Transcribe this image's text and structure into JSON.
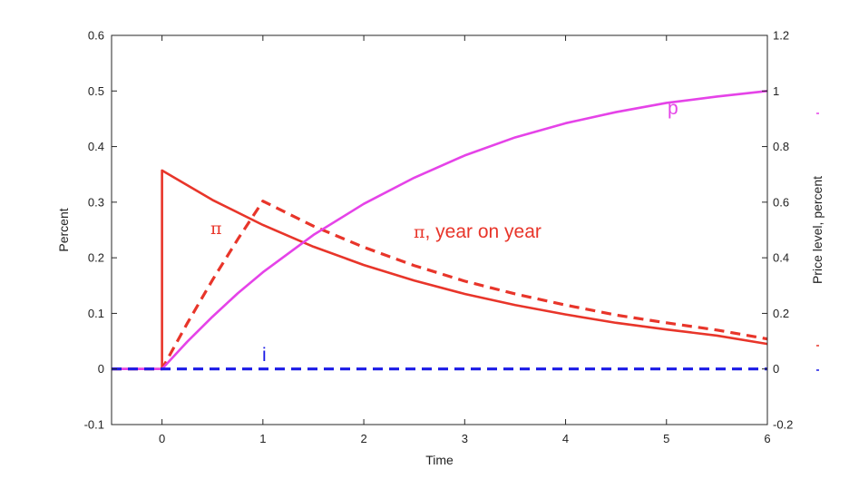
{
  "chart_data": {
    "type": "line",
    "xlabel": "Time",
    "ylabel_left": "Percent",
    "ylabel_right": "Price level, percent",
    "xlim": [
      -0.5,
      6
    ],
    "ylim_left": [
      -0.1,
      0.6
    ],
    "ylim_right": [
      -0.2,
      1.2
    ],
    "grid": false,
    "x_ticks": [
      0,
      1,
      2,
      3,
      4,
      5,
      6
    ],
    "x_tick_labels": [
      "0",
      "1",
      "2",
      "3",
      "4",
      "5",
      "6"
    ],
    "y_left_ticks": [
      -0.1,
      0,
      0.1,
      0.2,
      0.3,
      0.4,
      0.5,
      0.6
    ],
    "y_left_tick_labels": [
      "-0.1",
      "0",
      "0.1",
      "0.2",
      "0.3",
      "0.4",
      "0.5",
      "0.6"
    ],
    "y_right_ticks": [
      -0.2,
      0,
      0.2,
      0.4,
      0.6,
      0.8,
      1,
      1.2
    ],
    "y_right_tick_labels": [
      "-0.2",
      "0",
      "0.2",
      "0.4",
      "0.6",
      "0.8",
      "1",
      "1.2"
    ],
    "annotations": {
      "p": "p",
      "pi": "π",
      "pi_yoy_symbol": "π",
      "pi_yoy_text": ", year on year",
      "i": "i"
    },
    "series": [
      {
        "name": "π",
        "axis": "left",
        "color": "#e8352a",
        "dash": "solid",
        "x": [
          -0.5,
          0,
          0,
          0.5,
          1,
          1.5,
          2,
          2.5,
          3,
          3.5,
          4,
          4.5,
          5,
          5.5,
          6
        ],
        "y": [
          0,
          0,
          0.357,
          0.304,
          0.259,
          0.22,
          0.187,
          0.159,
          0.135,
          0.115,
          0.098,
          0.083,
          0.071,
          0.06,
          0.045
        ]
      },
      {
        "name": "π, year on year",
        "axis": "left",
        "color": "#e8352a",
        "dash": "dashed",
        "x": [
          -0.5,
          0,
          0.25,
          0.5,
          0.75,
          1,
          1.5,
          2,
          2.5,
          3,
          3.5,
          4,
          4.5,
          5,
          5.5,
          6
        ],
        "y": [
          0,
          0,
          0.082,
          0.16,
          0.233,
          0.302,
          0.257,
          0.219,
          0.186,
          0.158,
          0.135,
          0.115,
          0.097,
          0.083,
          0.07,
          0.054
        ]
      },
      {
        "name": "p",
        "axis": "right",
        "color": "#e543e8",
        "dash": "solid",
        "x": [
          -0.5,
          0,
          0.25,
          0.5,
          0.75,
          1,
          1.5,
          2,
          2.5,
          3,
          3.5,
          4,
          4.5,
          5,
          5.5,
          6
        ],
        "y": [
          0,
          0,
          0.098,
          0.188,
          0.272,
          0.348,
          0.482,
          0.594,
          0.688,
          0.768,
          0.833,
          0.884,
          0.924,
          0.957,
          0.98,
          1.0
        ]
      },
      {
        "name": "i",
        "axis": "left",
        "color": "#1a1ae6",
        "dash": "dashed",
        "x": [
          -0.5,
          6
        ],
        "y": [
          0,
          0
        ]
      }
    ]
  }
}
